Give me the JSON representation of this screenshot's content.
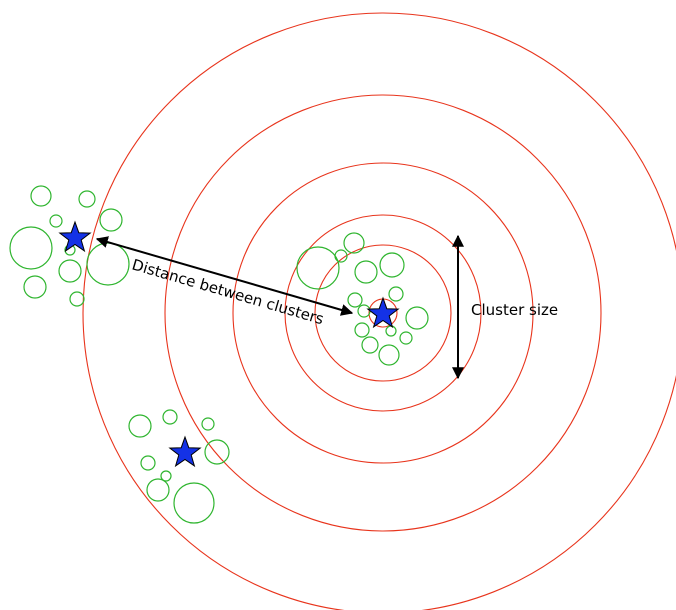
{
  "diagram": {
    "distance_label": "Distance between clusters",
    "size_label": "Cluster size",
    "ring_color": "#e8341c",
    "member_color": "#2fb52f",
    "centroid_color": "#1432e6",
    "rings_count": 7,
    "clusters": [
      {
        "name": "left-cluster",
        "members": 11
      },
      {
        "name": "center-cluster",
        "members": 14
      },
      {
        "name": "bottom-cluster",
        "members": 8
      }
    ]
  }
}
